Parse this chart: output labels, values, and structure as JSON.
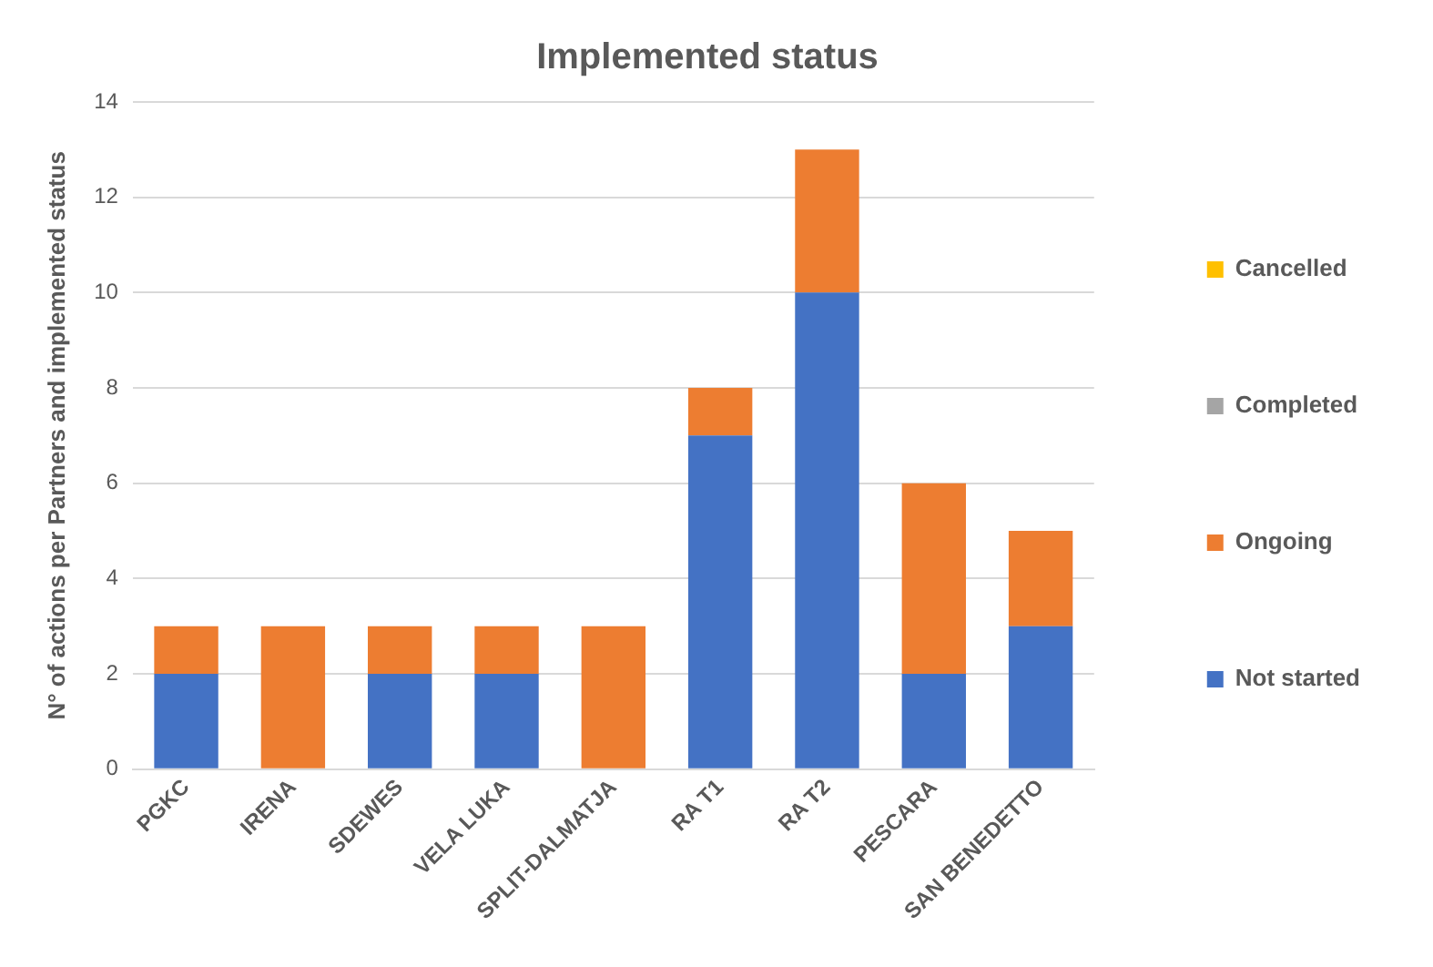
{
  "chart_data": {
    "type": "bar",
    "title": "Implemented status",
    "ylabel": "N° of actions per Partners and implemented status",
    "categories": [
      "PGKC",
      "IRENA",
      "SDEWES",
      "VELA LUKA",
      "SPLIT-DALMATJA",
      "RA T1",
      "RA T2",
      "PESCARA",
      "SAN BENEDETTO"
    ],
    "series": [
      {
        "name": "Not started",
        "color": "#4472c4",
        "values": [
          2,
          0,
          2,
          2,
          0,
          7,
          10,
          2,
          3
        ]
      },
      {
        "name": "Ongoing",
        "color": "#ed7d31",
        "values": [
          1,
          3,
          1,
          1,
          3,
          1,
          3,
          4,
          2
        ]
      },
      {
        "name": "Completed",
        "color": "#a5a5a5",
        "values": [
          0,
          0,
          0,
          0,
          0,
          0,
          0,
          0,
          0
        ]
      },
      {
        "name": "Cancelled",
        "color": "#ffc000",
        "values": [
          0,
          0,
          0,
          0,
          0,
          0,
          0,
          0,
          0
        ]
      }
    ],
    "stacked": true,
    "ylim": [
      0,
      14
    ],
    "yticks": [
      0,
      2,
      4,
      6,
      8,
      10,
      12,
      14
    ],
    "grid": "y",
    "legend": "right"
  }
}
